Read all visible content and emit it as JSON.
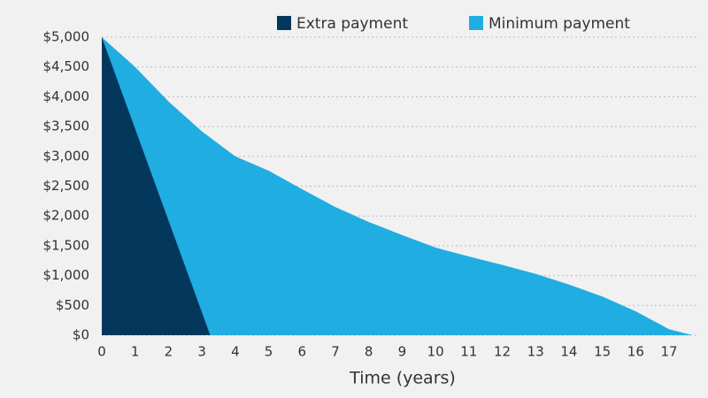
{
  "chart_data": {
    "type": "area",
    "x_label": "Time (years)",
    "series": [
      {
        "name": "Extra payment",
        "color": "#04375c",
        "x": [
          0,
          3.25
        ],
        "values": [
          5000,
          0
        ]
      },
      {
        "name": "Minimum payment",
        "color": "#20ade2",
        "x": [
          0,
          1,
          2,
          3,
          4,
          5,
          6,
          7,
          8,
          9,
          10,
          11,
          12,
          13,
          14,
          15,
          16,
          17,
          17.7
        ],
        "values": [
          5000,
          4500,
          3920,
          3420,
          3000,
          2760,
          2450,
          2150,
          1900,
          1680,
          1470,
          1320,
          1180,
          1030,
          850,
          650,
          400,
          100,
          0
        ]
      }
    ],
    "xlim": [
      0,
      17.9
    ],
    "xticks": [
      0,
      1,
      2,
      3,
      4,
      5,
      6,
      7,
      8,
      9,
      10,
      11,
      12,
      13,
      14,
      15,
      16,
      17
    ],
    "ylim": [
      0,
      5000
    ],
    "yticks": [
      {
        "value": 0,
        "label": "$0"
      },
      {
        "value": 500,
        "label": "$500"
      },
      {
        "value": 1000,
        "label": "$1,000"
      },
      {
        "value": 1500,
        "label": "$1,500"
      },
      {
        "value": 2000,
        "label": "$2,000"
      },
      {
        "value": 2500,
        "label": "$2,500"
      },
      {
        "value": 3000,
        "label": "$3,000"
      },
      {
        "value": 3500,
        "label": "$3,500"
      },
      {
        "value": 4000,
        "label": "$4,000"
      },
      {
        "value": 4500,
        "label": "$4,500"
      },
      {
        "value": 5000,
        "label": "$5,000"
      }
    ],
    "grid": true
  }
}
